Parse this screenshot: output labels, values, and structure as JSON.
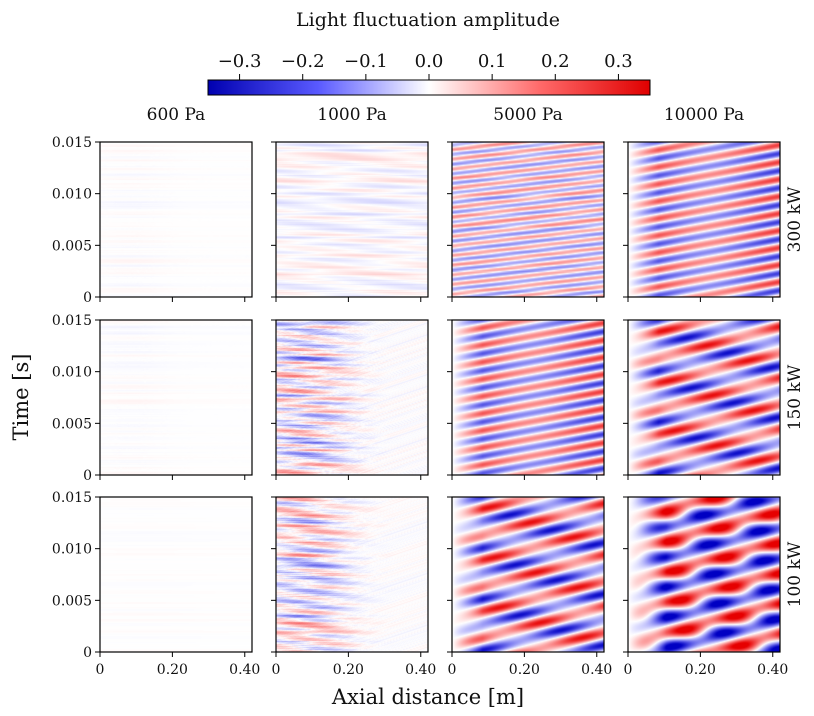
{
  "chart_data": {
    "type": "heatmap",
    "colorbar": {
      "title": "Light fluctuation amplitude",
      "ticks": [
        "−0.3",
        "−0.2",
        "−0.1",
        "0.0",
        "0.1",
        "0.2",
        "0.3"
      ],
      "tick_values": [
        -0.3,
        -0.2,
        -0.1,
        0.0,
        0.1,
        0.2,
        0.3
      ],
      "range": [
        -0.35,
        0.35
      ],
      "colormap": "bwr",
      "low_color": "#0000ff",
      "mid_color": "#ffffff",
      "high_color": "#ff0000",
      "placement": "top"
    },
    "col_titles": [
      "600 Pa",
      "1000 Pa",
      "5000 Pa",
      "10000 Pa"
    ],
    "row_titles": [
      "300 kW",
      "150 kW",
      "100 kW"
    ],
    "xlabel": "Axial distance [m]",
    "ylabel": "Time [s]",
    "xlim": [
      0,
      0.42
    ],
    "ylim": [
      0,
      0.015
    ],
    "x_ticks": [
      0,
      0.2,
      0.4
    ],
    "x_tick_labels": [
      "0",
      "0.20",
      "0.40"
    ],
    "y_ticks": [
      0,
      0.005,
      0.01,
      0.015
    ],
    "y_tick_labels": [
      "0",
      "0.005",
      "0.010",
      "0.015"
    ],
    "panels": [
      {
        "row": "300 kW",
        "col": "600 Pa",
        "pattern": "horizontal-speckle",
        "amplitude": 0.08
      },
      {
        "row": "300 kW",
        "col": "1000 Pa",
        "pattern": "horizontal-streaks",
        "amplitude": 0.15
      },
      {
        "row": "300 kW",
        "col": "5000 Pa",
        "pattern": "diagonal-fine-bands",
        "amplitude": 0.25
      },
      {
        "row": "300 kW",
        "col": "10000 Pa",
        "pattern": "diagonal-bands",
        "amplitude": 0.3
      },
      {
        "row": "150 kW",
        "col": "600 Pa",
        "pattern": "horizontal-speckle",
        "amplitude": 0.07
      },
      {
        "row": "150 kW",
        "col": "1000 Pa",
        "pattern": "horizontal-streaks-strong",
        "amplitude": 0.3
      },
      {
        "row": "150 kW",
        "col": "5000 Pa",
        "pattern": "diagonal-bands",
        "amplitude": 0.3
      },
      {
        "row": "150 kW",
        "col": "10000 Pa",
        "pattern": "diagonal-wide-bands",
        "amplitude": 0.35
      },
      {
        "row": "100 kW",
        "col": "600 Pa",
        "pattern": "horizontal-faint",
        "amplitude": 0.05
      },
      {
        "row": "100 kW",
        "col": "1000 Pa",
        "pattern": "horizontal-streaks-strong",
        "amplitude": 0.3
      },
      {
        "row": "100 kW",
        "col": "5000 Pa",
        "pattern": "diagonal-wide-bands",
        "amplitude": 0.35
      },
      {
        "row": "100 kW",
        "col": "10000 Pa",
        "pattern": "diagonal-blobs",
        "amplitude": 0.35
      }
    ]
  }
}
